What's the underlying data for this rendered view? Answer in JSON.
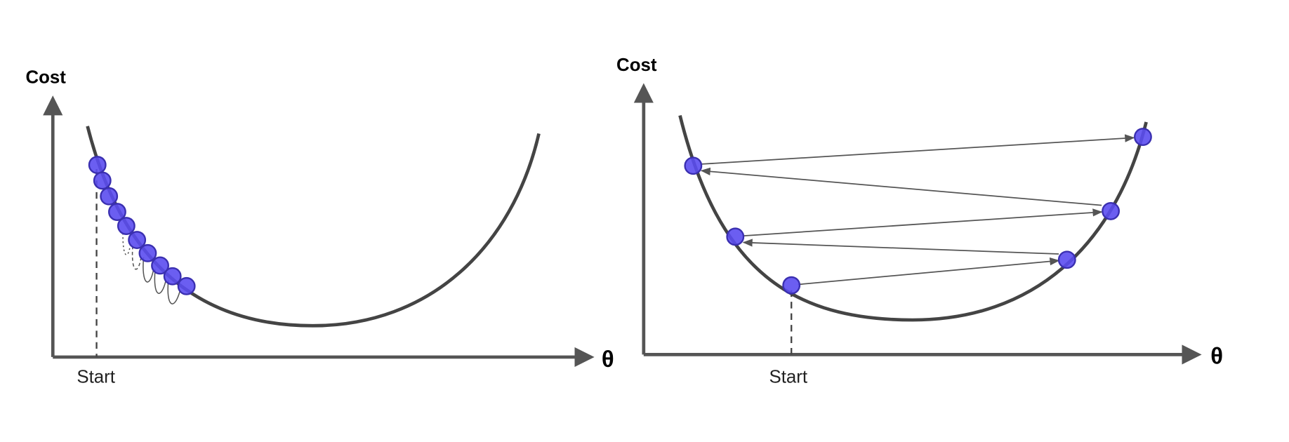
{
  "panels": [
    {
      "y_label": "Cost",
      "x_label": "θ",
      "start_label": "Start"
    },
    {
      "y_label": "Cost",
      "x_label": "θ",
      "start_label": "Start"
    }
  ]
}
